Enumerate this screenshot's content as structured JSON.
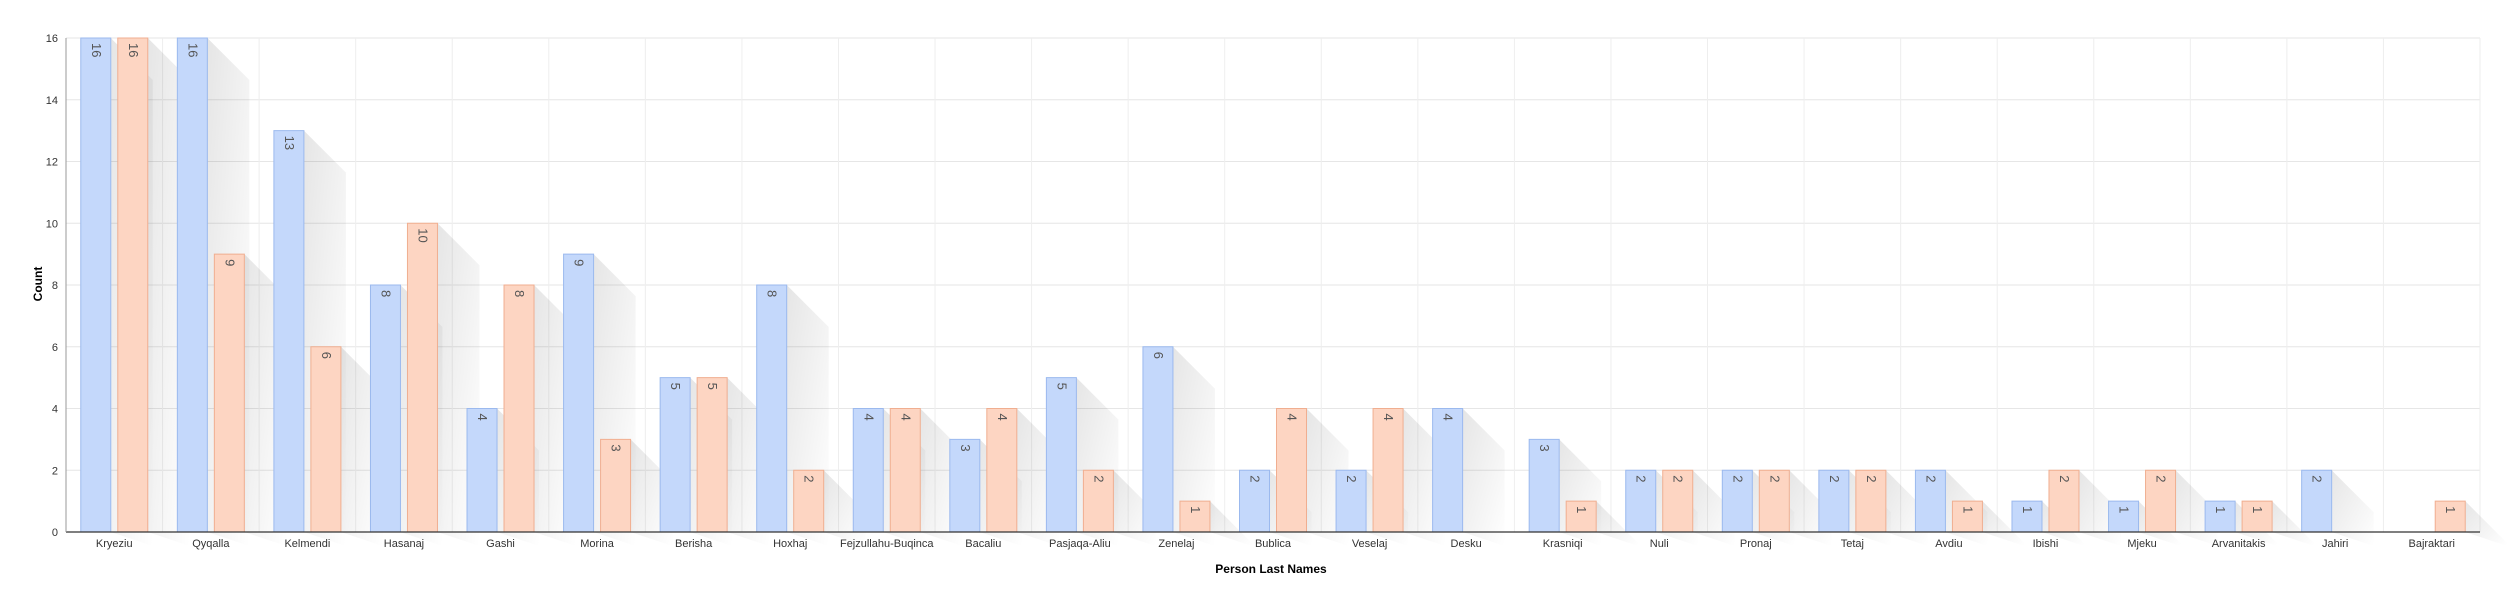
{
  "chart_data": {
    "type": "bar",
    "xlabel": "Person Last Names",
    "ylabel": "Count",
    "ylim": [
      0,
      16
    ],
    "yticks": [
      0,
      2,
      4,
      6,
      8,
      10,
      12,
      14,
      16
    ],
    "grid": true,
    "legend": "none",
    "categories": [
      "Kryeziu",
      "Qyqalla",
      "Kelmendi",
      "Hasanaj",
      "Gashi",
      "Morina",
      "Berisha",
      "Hoxhaj",
      "Fejzullahu-Buqinca",
      "Bacaliu",
      "Pasjaqa-Aliu",
      "Zenelaj",
      "Bublica",
      "Veselaj",
      "Desku",
      "Krasniqi",
      "Nuli",
      "Pronaj",
      "Tetaj",
      "Avdiu",
      "Ibishi",
      "Mjeku",
      "Arvanitakis",
      "Jahiri",
      "Bajraktari"
    ],
    "series": [
      {
        "color": "#c4d8fb",
        "stroke": "#9bb9ee",
        "values": [
          16,
          16,
          13,
          8,
          4,
          9,
          5,
          8,
          4,
          3,
          5,
          6,
          2,
          2,
          4,
          3,
          2,
          2,
          2,
          2,
          1,
          1,
          1,
          2,
          null
        ]
      },
      {
        "color": "#fdd5c2",
        "stroke": "#f0ae90",
        "values": [
          16,
          9,
          6,
          10,
          8,
          3,
          5,
          2,
          4,
          4,
          2,
          1,
          4,
          4,
          null,
          1,
          2,
          2,
          2,
          1,
          2,
          2,
          1,
          null,
          1
        ]
      }
    ]
  }
}
